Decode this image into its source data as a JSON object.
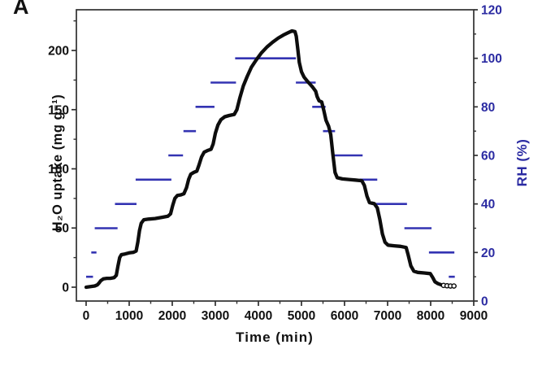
{
  "panel_label": "A",
  "colors": {
    "rh_line": "#3333b2",
    "rh_text": "#2b2ba2",
    "uptake_line": "#0d0d0d",
    "axis": "#2f2f2f",
    "background": "#ffffff"
  },
  "chart_data": {
    "type": "line",
    "title": "",
    "xlabel": "Time (min)",
    "ylabel_left": "H₂O uptake (mg g⁻¹)",
    "ylabel_right": "RH (%)",
    "xlim": [
      -226,
      9000
    ],
    "ylim_left": [
      -11.7,
      234.4
    ],
    "ylim_right": [
      0,
      120
    ],
    "grid": false,
    "legend": "none",
    "x_ticks": [
      0,
      1000,
      2000,
      3000,
      4000,
      5000,
      6000,
      7000,
      8000,
      9000
    ],
    "x_minor_ticks": [
      500,
      1500,
      2500,
      3500,
      4500,
      5500,
      6500,
      7500,
      8500
    ],
    "left_ticks": [
      0,
      50,
      100,
      150,
      200
    ],
    "left_minor_ticks": [
      25,
      75,
      125,
      175,
      225
    ],
    "right_ticks": [
      0,
      20,
      40,
      60,
      80,
      100,
      120
    ],
    "right_minor_ticks": [
      10,
      30,
      50,
      70,
      90,
      110
    ],
    "series": [
      {
        "name": "H2O uptake",
        "axis": "left",
        "style": "line",
        "points": [
          [
            0,
            0
          ],
          [
            100,
            0.5
          ],
          [
            200,
            1
          ],
          [
            260,
            2
          ],
          [
            300,
            3.5
          ],
          [
            340,
            5.5
          ],
          [
            400,
            7
          ],
          [
            480,
            7.5
          ],
          [
            560,
            7.5
          ],
          [
            650,
            8
          ],
          [
            700,
            10
          ],
          [
            740,
            18
          ],
          [
            780,
            25
          ],
          [
            820,
            27.5
          ],
          [
            900,
            28
          ],
          [
            1000,
            29
          ],
          [
            1100,
            29.5
          ],
          [
            1160,
            30.5
          ],
          [
            1200,
            38
          ],
          [
            1240,
            48
          ],
          [
            1280,
            54
          ],
          [
            1340,
            57
          ],
          [
            1450,
            57.5
          ],
          [
            1600,
            58
          ],
          [
            1750,
            59
          ],
          [
            1900,
            60
          ],
          [
            1960,
            62
          ],
          [
            2010,
            69
          ],
          [
            2060,
            75
          ],
          [
            2120,
            77.5
          ],
          [
            2200,
            78
          ],
          [
            2270,
            79
          ],
          [
            2330,
            84
          ],
          [
            2380,
            91
          ],
          [
            2430,
            95.5
          ],
          [
            2500,
            97
          ],
          [
            2570,
            98
          ],
          [
            2620,
            103
          ],
          [
            2680,
            110
          ],
          [
            2740,
            114
          ],
          [
            2820,
            115.5
          ],
          [
            2900,
            116.5
          ],
          [
            2950,
            121
          ],
          [
            3000,
            130
          ],
          [
            3060,
            137
          ],
          [
            3130,
            141.5
          ],
          [
            3220,
            144
          ],
          [
            3320,
            145
          ],
          [
            3440,
            146
          ],
          [
            3500,
            150
          ],
          [
            3570,
            160
          ],
          [
            3650,
            170
          ],
          [
            3740,
            178
          ],
          [
            3840,
            186
          ],
          [
            3950,
            192
          ],
          [
            4070,
            198
          ],
          [
            4200,
            203
          ],
          [
            4330,
            207
          ],
          [
            4460,
            210.5
          ],
          [
            4580,
            213
          ],
          [
            4690,
            215
          ],
          [
            4780,
            216.5
          ],
          [
            4850,
            216
          ],
          [
            4880,
            212
          ],
          [
            4915,
            201
          ],
          [
            4950,
            190
          ],
          [
            5000,
            182
          ],
          [
            5060,
            177.5
          ],
          [
            5150,
            173.5
          ],
          [
            5250,
            169.5
          ],
          [
            5330,
            165.5
          ],
          [
            5365,
            161
          ],
          [
            5410,
            157.5
          ],
          [
            5470,
            156.5
          ],
          [
            5520,
            149
          ],
          [
            5570,
            141
          ],
          [
            5630,
            136
          ],
          [
            5680,
            129
          ],
          [
            5730,
            112
          ],
          [
            5780,
            97
          ],
          [
            5830,
            92.5
          ],
          [
            5950,
            91.5
          ],
          [
            6100,
            91
          ],
          [
            6250,
            90.5
          ],
          [
            6400,
            90
          ],
          [
            6460,
            86
          ],
          [
            6520,
            77
          ],
          [
            6580,
            71.5
          ],
          [
            6690,
            70.5
          ],
          [
            6760,
            67
          ],
          [
            6820,
            57
          ],
          [
            6880,
            45
          ],
          [
            6940,
            38
          ],
          [
            7010,
            35.5
          ],
          [
            7150,
            35
          ],
          [
            7300,
            34.5
          ],
          [
            7430,
            33.5
          ],
          [
            7480,
            27
          ],
          [
            7540,
            18
          ],
          [
            7610,
            13.5
          ],
          [
            7700,
            12.5
          ],
          [
            7850,
            12
          ],
          [
            7990,
            11.5
          ],
          [
            8050,
            8
          ],
          [
            8100,
            4.5
          ],
          [
            8170,
            3
          ],
          [
            8250,
            2
          ],
          [
            8350,
            1.5
          ],
          [
            8560,
            1
          ]
        ],
        "tail_markers": [
          [
            8300,
            1.5
          ],
          [
            8380,
            1.2
          ],
          [
            8460,
            1
          ],
          [
            8540,
            1
          ]
        ]
      },
      {
        "name": "RH",
        "axis": "right",
        "style": "segments",
        "segments": [
          [
            0,
            160,
            10
          ],
          [
            120,
            240,
            20
          ],
          [
            200,
            730,
            30
          ],
          [
            670,
            1170,
            40
          ],
          [
            1150,
            1980,
            50
          ],
          [
            1910,
            2250,
            60
          ],
          [
            2260,
            2550,
            70
          ],
          [
            2540,
            2980,
            80
          ],
          [
            2890,
            3480,
            90
          ],
          [
            3460,
            4870,
            100
          ],
          [
            4870,
            5330,
            90
          ],
          [
            5250,
            5560,
            80
          ],
          [
            5500,
            5780,
            70
          ],
          [
            5720,
            6420,
            60
          ],
          [
            6350,
            6760,
            50
          ],
          [
            6690,
            7450,
            40
          ],
          [
            7390,
            8020,
            30
          ],
          [
            7960,
            8550,
            20
          ],
          [
            8420,
            8560,
            10
          ]
        ]
      }
    ]
  }
}
